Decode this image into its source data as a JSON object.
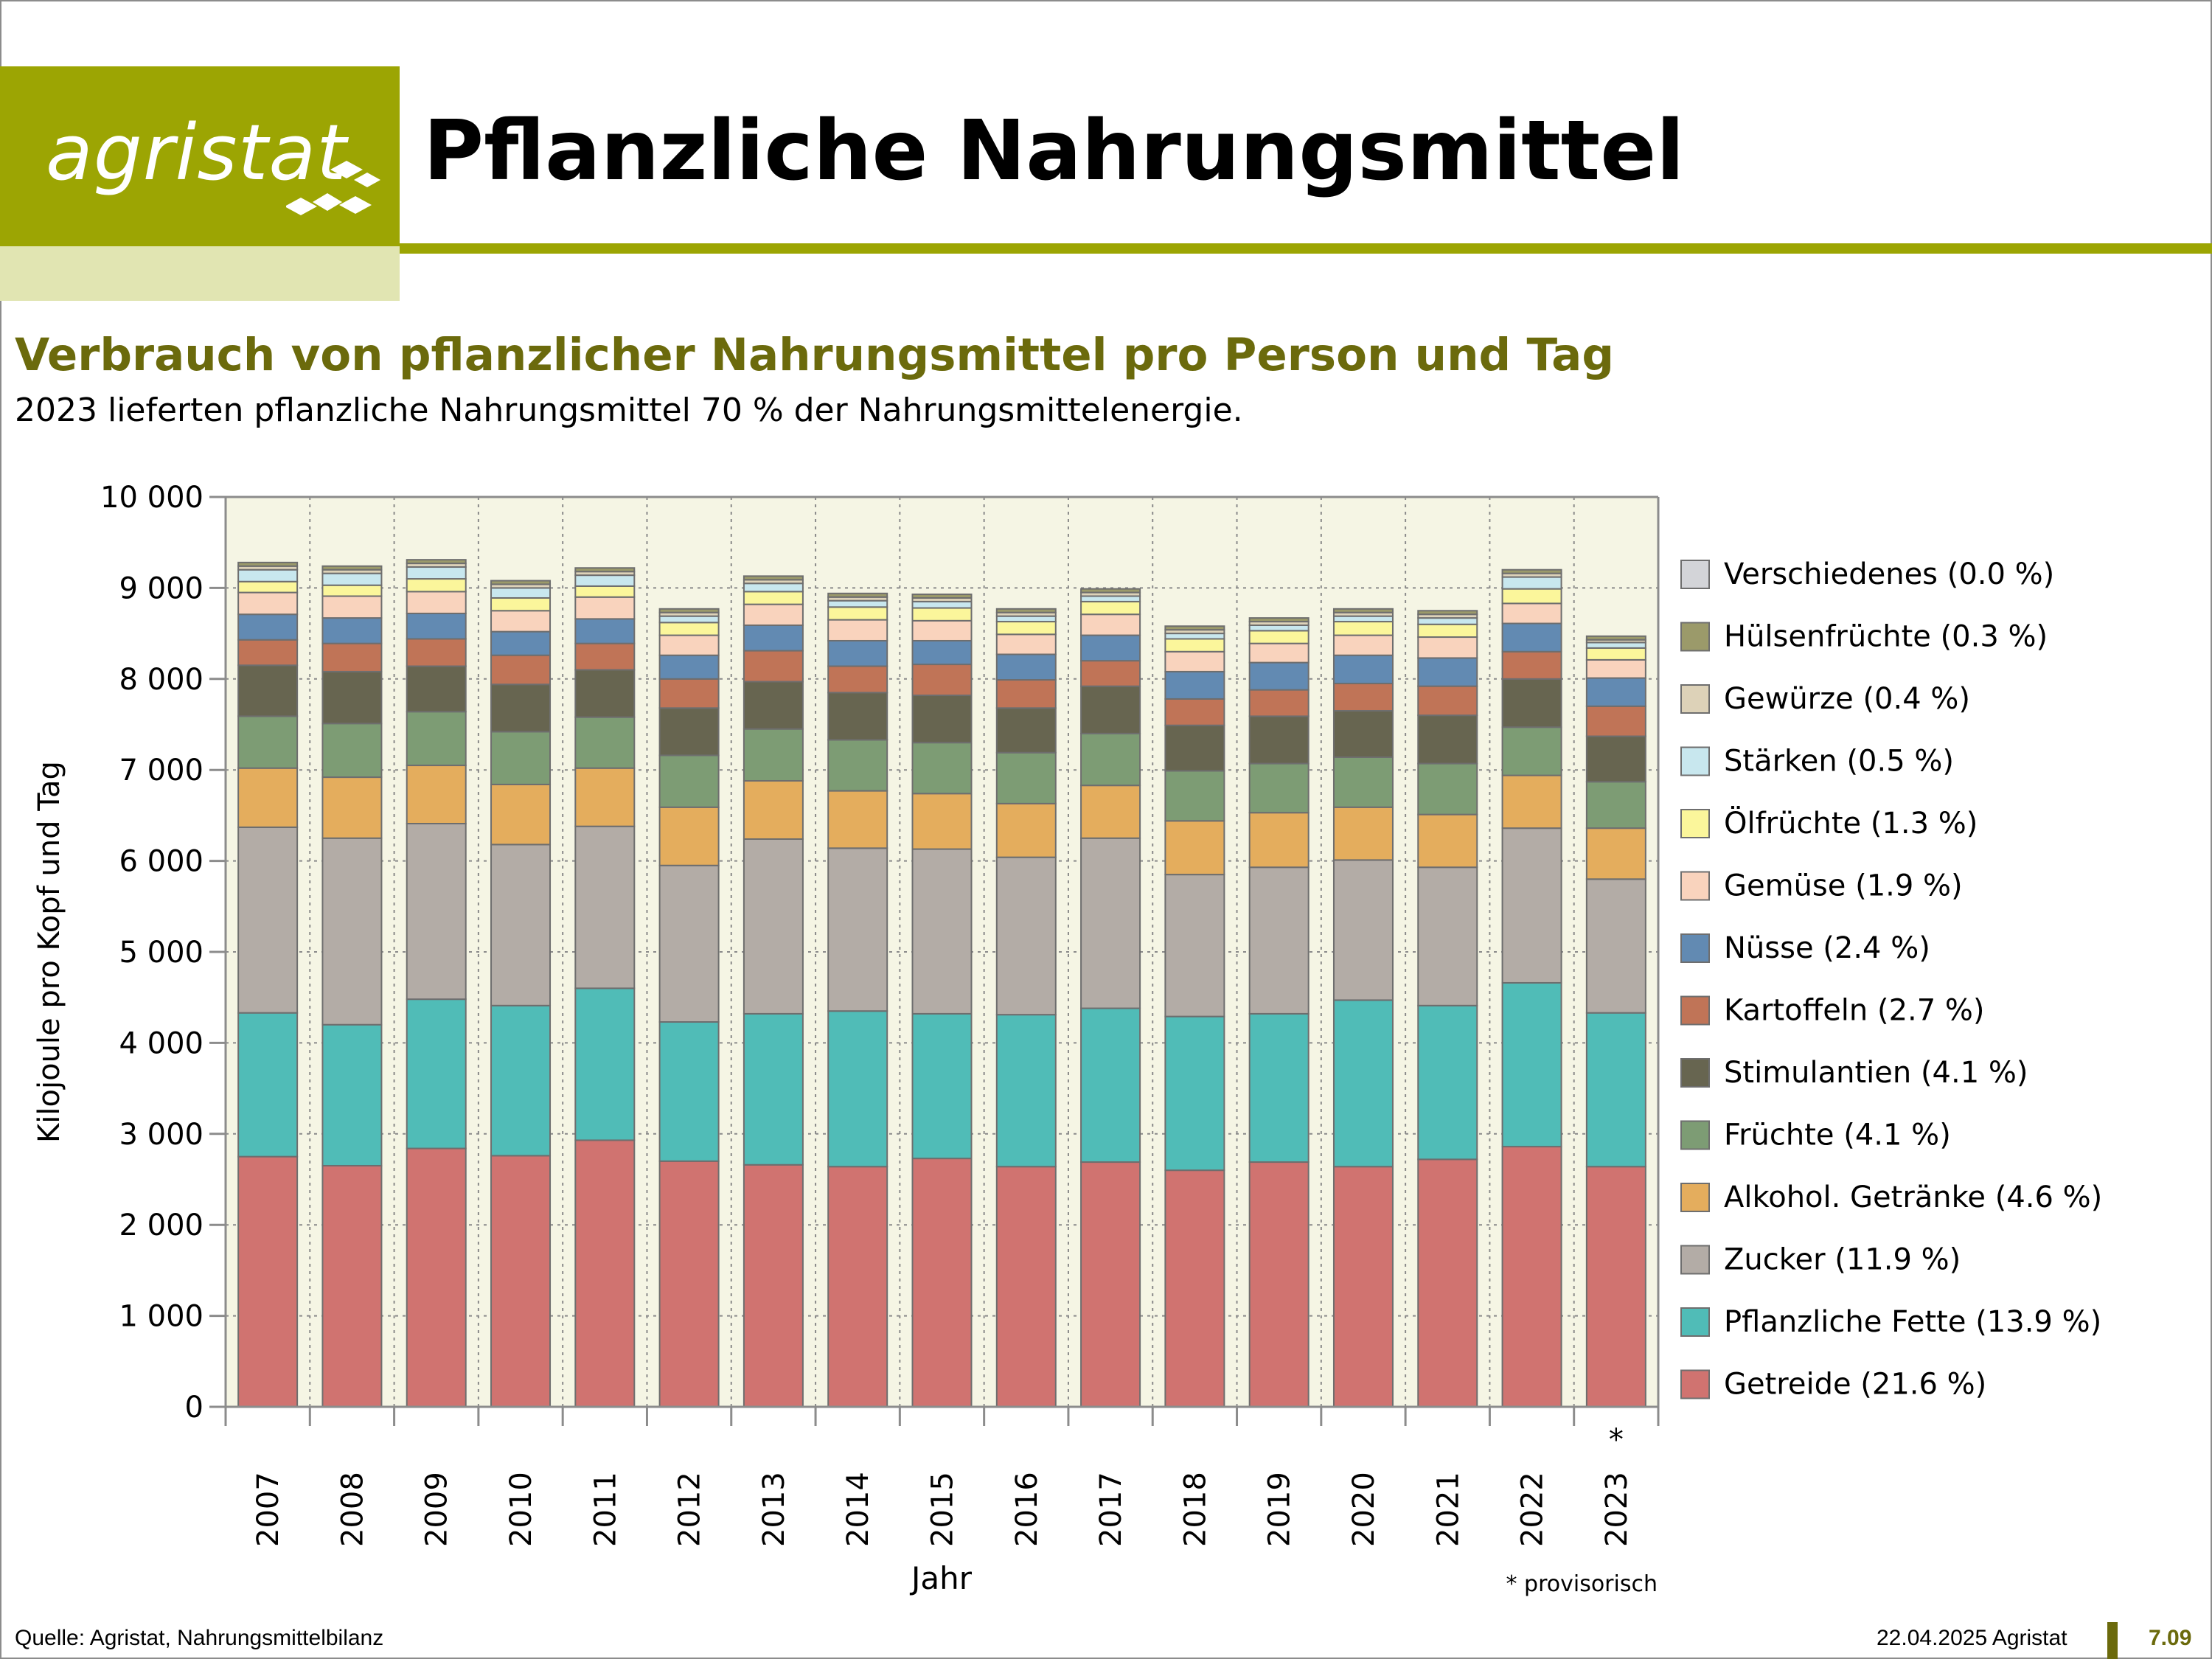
{
  "brand": {
    "name": "agristat"
  },
  "header": {
    "title": "Pflanzliche Nahrungsmittel"
  },
  "section": {
    "title": "Verbrauch von pflanzlicher Nahrungsmittel pro Person und Tag",
    "lead": "2023 lieferten pflanzliche Nahrungsmittel 70 % der Nahrungsmittelenergie."
  },
  "footer": {
    "source": "Quelle: Agristat, Nahrungsmittelbilanz",
    "date": "22.04.2025 Agristat",
    "page": "7.09"
  },
  "colors": {
    "brand": "#9ca503",
    "brand_light": "#e1e5b2",
    "subtitle": "#6b6a0c",
    "plot_bg": "#f5f5e4"
  },
  "chart_data": {
    "type": "bar",
    "stacked": true,
    "xlabel": "Jahr",
    "ylabel": "Kilojoule pro Kopf und Tag",
    "ylim": [
      0,
      10000
    ],
    "yticks": [
      0,
      1000,
      2000,
      3000,
      4000,
      5000,
      6000,
      7000,
      8000,
      9000,
      10000
    ],
    "ytick_labels": [
      "0",
      "1 000",
      "2 000",
      "3 000",
      "4 000",
      "5 000",
      "6 000",
      "7 000",
      "8 000",
      "9 000",
      "10 000"
    ],
    "grid": true,
    "legend_position": "right",
    "footnote": "* provisorisch",
    "categories": [
      "2007",
      "2008",
      "2009",
      "2010",
      "2011",
      "2012",
      "2013",
      "2014",
      "2015",
      "2016",
      "2017",
      "2018",
      "2019",
      "2020",
      "2021",
      "2022",
      "2023"
    ],
    "category_marks": [
      "",
      "",
      "",
      "",
      "",
      "",
      "",
      "",
      "",
      "",
      "",
      "",
      "",
      "",
      "",
      "",
      "*"
    ],
    "series": [
      {
        "name": "Getreide",
        "legend": "Getreide (21.6 %)",
        "color": "#d07370",
        "values": [
          2750,
          2650,
          2840,
          2760,
          2930,
          2700,
          2660,
          2640,
          2730,
          2640,
          2690,
          2600,
          2690,
          2640,
          2720,
          2860,
          2640
        ]
      },
      {
        "name": "Pflanzliche Fette",
        "legend": "Pflanzliche Fette (13.9 %)",
        "color": "#50bcb7",
        "values": [
          1580,
          1550,
          1640,
          1650,
          1670,
          1530,
          1660,
          1710,
          1590,
          1670,
          1690,
          1690,
          1630,
          1830,
          1690,
          1800,
          1690
        ]
      },
      {
        "name": "Zucker",
        "legend": "Zucker (11.9 %)",
        "color": "#b3aca6",
        "values": [
          2040,
          2050,
          1930,
          1770,
          1780,
          1720,
          1920,
          1790,
          1810,
          1730,
          1870,
          1560,
          1610,
          1540,
          1520,
          1700,
          1470
        ]
      },
      {
        "name": "Alkohol. Getränke",
        "legend": "Alkohol. Getränke (4.6 %)",
        "color": "#e4ad5d",
        "values": [
          650,
          670,
          640,
          660,
          640,
          640,
          640,
          630,
          610,
          590,
          580,
          590,
          600,
          580,
          580,
          580,
          560
        ]
      },
      {
        "name": "Früchte",
        "legend": "Früchte (4.1 %)",
        "color": "#7d9c74",
        "values": [
          570,
          590,
          590,
          580,
          560,
          570,
          570,
          560,
          560,
          560,
          570,
          550,
          540,
          550,
          560,
          530,
          510
        ]
      },
      {
        "name": "Stimulantien",
        "legend": "Stimulantien (4.1 %)",
        "color": "#676550",
        "values": [
          560,
          570,
          500,
          520,
          520,
          520,
          520,
          520,
          520,
          490,
          520,
          500,
          520,
          510,
          530,
          530,
          500
        ]
      },
      {
        "name": "Kartoffeln",
        "legend": "Kartoffeln (2.7 %)",
        "color": "#c07457",
        "values": [
          280,
          310,
          300,
          320,
          290,
          320,
          340,
          290,
          340,
          310,
          280,
          290,
          290,
          300,
          320,
          300,
          330
        ]
      },
      {
        "name": "Nüsse",
        "legend": "Nüsse (2.4 %)",
        "color": "#628ab2",
        "values": [
          280,
          280,
          280,
          260,
          270,
          260,
          280,
          280,
          260,
          280,
          280,
          300,
          300,
          310,
          310,
          310,
          310
        ]
      },
      {
        "name": "Gemüse",
        "legend": "Gemüse (1.9 %)",
        "color": "#f9d3bd",
        "values": [
          240,
          240,
          240,
          230,
          240,
          220,
          230,
          230,
          220,
          220,
          230,
          220,
          210,
          220,
          230,
          220,
          200
        ]
      },
      {
        "name": "Ölfrüchte",
        "legend": "Ölfrüchte (1.3 %)",
        "color": "#fbf69b",
        "values": [
          120,
          120,
          140,
          140,
          120,
          140,
          140,
          140,
          140,
          140,
          140,
          140,
          140,
          150,
          140,
          160,
          130
        ]
      },
      {
        "name": "Stärken",
        "legend": "Stärken (0.5 %)",
        "color": "#c8e7ee",
        "values": [
          130,
          130,
          130,
          110,
          120,
          70,
          90,
          70,
          70,
          60,
          60,
          60,
          60,
          60,
          70,
          130,
          60
        ]
      },
      {
        "name": "Gewürze",
        "legend": "Gewürze (0.4 %)",
        "color": "#ddd2b8",
        "values": [
          40,
          40,
          40,
          40,
          40,
          40,
          40,
          40,
          40,
          40,
          40,
          40,
          40,
          40,
          40,
          40,
          30
        ]
      },
      {
        "name": "Hülsenfrüchte",
        "legend": "Hülsenfrüchte (0.3 %)",
        "color": "#9b9a6a",
        "values": [
          40,
          40,
          40,
          40,
          40,
          40,
          40,
          40,
          40,
          40,
          40,
          40,
          40,
          40,
          40,
          40,
          40
        ]
      },
      {
        "name": "Verschiedenes",
        "legend": "Verschiedenes (0.0 %)",
        "color": "#d3d4d8",
        "values": [
          0,
          0,
          0,
          0,
          0,
          0,
          0,
          0,
          0,
          0,
          0,
          0,
          0,
          0,
          0,
          0,
          0
        ]
      }
    ]
  }
}
